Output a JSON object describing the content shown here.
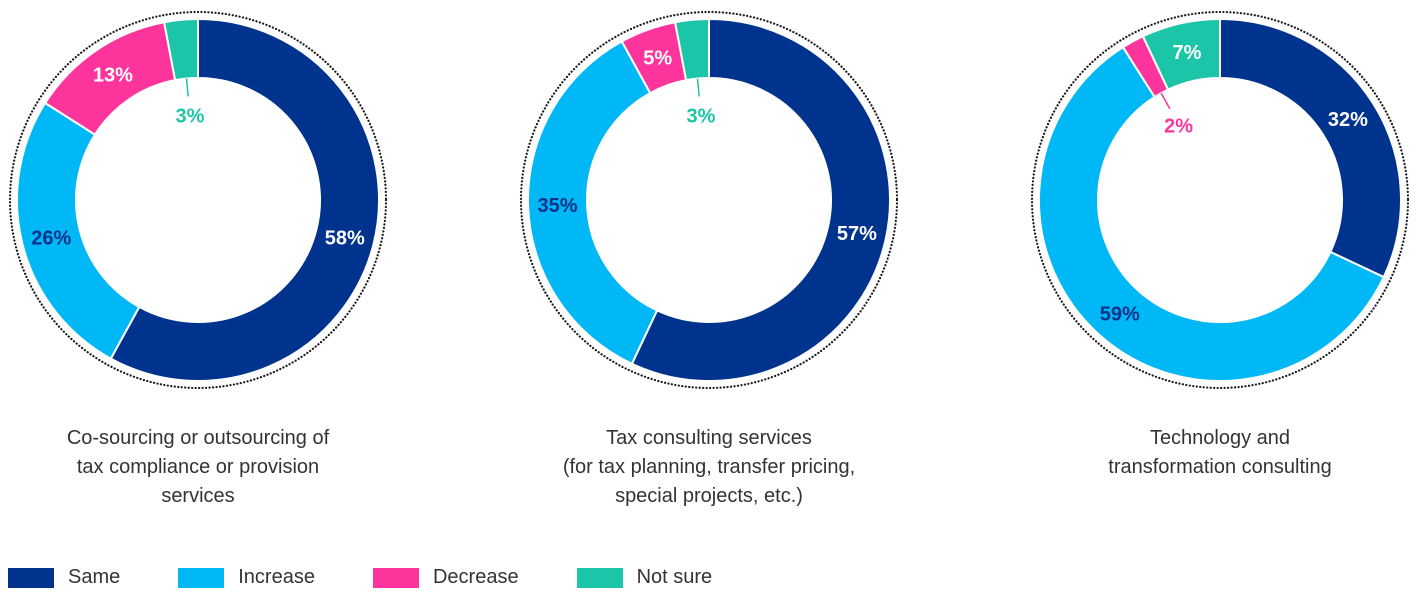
{
  "chart_data": [
    {
      "type": "pie",
      "donut": true,
      "title": "Co-sourcing or outsourcing of\ntax compliance or provision\nservices",
      "slices": [
        {
          "label": "Same",
          "value": 58,
          "text": "58%"
        },
        {
          "label": "Increase",
          "value": 26,
          "text": "26%"
        },
        {
          "label": "Decrease",
          "value": 13,
          "text": "13%"
        },
        {
          "label": "Not sure",
          "value": 3,
          "text": "3%"
        }
      ]
    },
    {
      "type": "pie",
      "donut": true,
      "title": "Tax consulting services\n(for tax planning, transfer pricing,\nspecial projects, etc.)",
      "slices": [
        {
          "label": "Same",
          "value": 57,
          "text": "57%"
        },
        {
          "label": "Increase",
          "value": 35,
          "text": "35%"
        },
        {
          "label": "Decrease",
          "value": 5,
          "text": "5%"
        },
        {
          "label": "Not sure",
          "value": 3,
          "text": "3%"
        }
      ]
    },
    {
      "type": "pie",
      "donut": true,
      "title": "Technology and\ntransformation consulting",
      "slices": [
        {
          "label": "Same",
          "value": 32,
          "text": "32%"
        },
        {
          "label": "Increase",
          "value": 59,
          "text": "59%"
        },
        {
          "label": "Decrease",
          "value": 2,
          "text": "2%"
        },
        {
          "label": "Not sure",
          "value": 7,
          "text": "7%"
        }
      ]
    }
  ],
  "legend": [
    {
      "label": "Same",
      "color": "#00338D"
    },
    {
      "label": "Increase",
      "color": "#00B8F5"
    },
    {
      "label": "Decrease",
      "color": "#FD349C"
    },
    {
      "label": "Not sure",
      "color": "#1DC5A8"
    }
  ]
}
